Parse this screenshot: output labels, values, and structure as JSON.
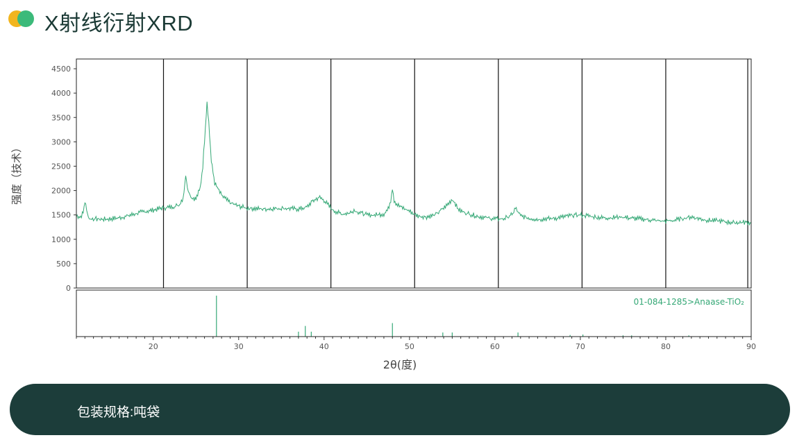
{
  "header": {
    "title": "X射线衍射XRD"
  },
  "footer": {
    "text": "包装规格:吨袋"
  },
  "colors": {
    "accent": "#35a876",
    "logo_left": "#f2b51e",
    "logo_right": "#3cba7a",
    "banner": "#1c3d3a"
  },
  "chart_data": {
    "type": "line",
    "xlabel": "2θ(度)",
    "ylabel": "强度（技术）",
    "xlim": [
      11,
      90
    ],
    "ylim": [
      0,
      4700
    ],
    "x_ticks": [
      20,
      30,
      40,
      50,
      60,
      70,
      80,
      90
    ],
    "y_ticks": [
      0,
      500,
      1000,
      1500,
      2000,
      2500,
      3000,
      3500,
      4000,
      4500
    ],
    "vertical_lines": [
      21.2,
      31.0,
      40.8,
      50.6,
      60.4,
      70.2,
      80.0,
      89.6
    ],
    "series": [
      {
        "points": [
          [
            11,
            1480
          ],
          [
            11.5,
            1460
          ],
          [
            11.8,
            1550
          ],
          [
            12.0,
            1780
          ],
          [
            12.2,
            1600
          ],
          [
            12.5,
            1420
          ],
          [
            13,
            1420
          ],
          [
            14,
            1410
          ],
          [
            15,
            1420
          ],
          [
            16,
            1440
          ],
          [
            17,
            1480
          ],
          [
            18,
            1530
          ],
          [
            19,
            1570
          ],
          [
            20,
            1600
          ],
          [
            21,
            1640
          ],
          [
            22,
            1660
          ],
          [
            23,
            1700
          ],
          [
            23.5,
            1850
          ],
          [
            23.8,
            2300
          ],
          [
            24.1,
            2000
          ],
          [
            24.5,
            1850
          ],
          [
            25,
            1830
          ],
          [
            25.5,
            2050
          ],
          [
            25.8,
            2500
          ],
          [
            26.1,
            3300
          ],
          [
            26.3,
            3820
          ],
          [
            26.5,
            3400
          ],
          [
            26.8,
            2600
          ],
          [
            27.2,
            2150
          ],
          [
            28,
            1900
          ],
          [
            29,
            1750
          ],
          [
            30,
            1680
          ],
          [
            31,
            1640
          ],
          [
            33,
            1620
          ],
          [
            35,
            1640
          ],
          [
            37,
            1620
          ],
          [
            38,
            1660
          ],
          [
            38.5,
            1760
          ],
          [
            39,
            1820
          ],
          [
            39.5,
            1860
          ],
          [
            40,
            1800
          ],
          [
            40.5,
            1700
          ],
          [
            41,
            1600
          ],
          [
            42,
            1520
          ],
          [
            43,
            1540
          ],
          [
            43.5,
            1600
          ],
          [
            44,
            1560
          ],
          [
            45,
            1500
          ],
          [
            46,
            1500
          ],
          [
            47,
            1520
          ],
          [
            47.5,
            1620
          ],
          [
            47.8,
            1800
          ],
          [
            48.0,
            2060
          ],
          [
            48.2,
            1800
          ],
          [
            48.5,
            1720
          ],
          [
            49,
            1660
          ],
          [
            50,
            1580
          ],
          [
            50.5,
            1520
          ],
          [
            51,
            1480
          ],
          [
            52,
            1460
          ],
          [
            53,
            1500
          ],
          [
            54,
            1640
          ],
          [
            54.5,
            1720
          ],
          [
            55,
            1820
          ],
          [
            55.3,
            1760
          ],
          [
            55.6,
            1640
          ],
          [
            56,
            1580
          ],
          [
            57,
            1520
          ],
          [
            58,
            1470
          ],
          [
            59,
            1440
          ],
          [
            60,
            1420
          ],
          [
            61,
            1420
          ],
          [
            62,
            1500
          ],
          [
            62.4,
            1640
          ],
          [
            62.7,
            1560
          ],
          [
            63,
            1480
          ],
          [
            64,
            1430
          ],
          [
            65,
            1410
          ],
          [
            66,
            1420
          ],
          [
            67,
            1430
          ],
          [
            68,
            1460
          ],
          [
            69,
            1490
          ],
          [
            70,
            1500
          ],
          [
            71,
            1480
          ],
          [
            72,
            1450
          ],
          [
            73,
            1440
          ],
          [
            74,
            1450
          ],
          [
            75,
            1460
          ],
          [
            76,
            1430
          ],
          [
            77,
            1420
          ],
          [
            78,
            1400
          ],
          [
            79,
            1380
          ],
          [
            80,
            1370
          ],
          [
            81,
            1390
          ],
          [
            82,
            1430
          ],
          [
            83,
            1460
          ],
          [
            84,
            1420
          ],
          [
            85,
            1390
          ],
          [
            86,
            1380
          ],
          [
            87,
            1360
          ],
          [
            88,
            1340
          ],
          [
            89,
            1350
          ],
          [
            90,
            1340
          ]
        ]
      }
    ],
    "reference": {
      "label": "01-084-1285>Anaase-TiO₂",
      "lines": [
        [
          27.4,
          1.0
        ],
        [
          37.0,
          0.12
        ],
        [
          37.8,
          0.26
        ],
        [
          38.5,
          0.12
        ],
        [
          48.0,
          0.33
        ],
        [
          53.9,
          0.1
        ],
        [
          55.0,
          0.1
        ],
        [
          62.7,
          0.1
        ],
        [
          68.8,
          0.04
        ],
        [
          70.3,
          0.05
        ],
        [
          75.0,
          0.03
        ],
        [
          76.0,
          0.03
        ],
        [
          82.7,
          0.03
        ]
      ]
    }
  }
}
